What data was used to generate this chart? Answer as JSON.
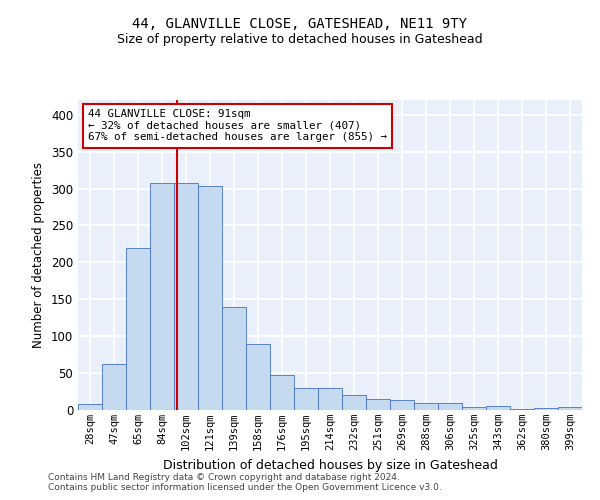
{
  "title": "44, GLANVILLE CLOSE, GATESHEAD, NE11 9TY",
  "subtitle": "Size of property relative to detached houses in Gateshead",
  "xlabel": "Distribution of detached houses by size in Gateshead",
  "ylabel": "Number of detached properties",
  "bar_color": "#c5d9f1",
  "bar_edge_color": "#4472c4",
  "background_color": "#eaf0fb",
  "grid_color": "#ffffff",
  "categories": [
    "28sqm",
    "47sqm",
    "65sqm",
    "84sqm",
    "102sqm",
    "121sqm",
    "139sqm",
    "158sqm",
    "176sqm",
    "195sqm",
    "214sqm",
    "232sqm",
    "251sqm",
    "269sqm",
    "288sqm",
    "306sqm",
    "325sqm",
    "343sqm",
    "362sqm",
    "380sqm",
    "399sqm"
  ],
  "values": [
    8,
    63,
    220,
    307,
    307,
    303,
    140,
    90,
    47,
    30,
    30,
    20,
    15,
    13,
    10,
    10,
    4,
    5,
    2,
    3,
    4
  ],
  "ylim": [
    0,
    420
  ],
  "yticks": [
    0,
    50,
    100,
    150,
    200,
    250,
    300,
    350,
    400
  ],
  "property_line_x": 3.62,
  "annotation_line1": "44 GLANVILLE CLOSE: 91sqm",
  "annotation_line2": "← 32% of detached houses are smaller (407)",
  "annotation_line3": "67% of semi-detached houses are larger (855) →",
  "annotation_box_color": "#ffffff",
  "annotation_box_edge": "#cc0000",
  "red_line_color": "#cc0000",
  "footer_line1": "Contains HM Land Registry data © Crown copyright and database right 2024.",
  "footer_line2": "Contains public sector information licensed under the Open Government Licence v3.0."
}
